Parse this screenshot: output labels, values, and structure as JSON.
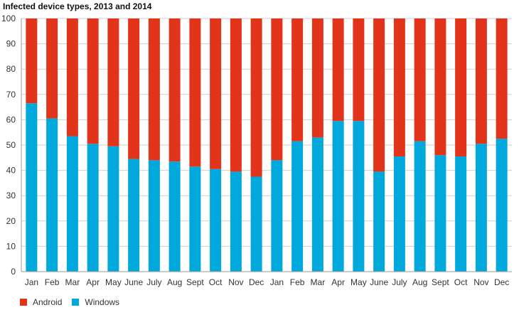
{
  "chart_data": {
    "type": "bar",
    "stacked": true,
    "title": "Infected device types, 2013 and 2014",
    "xlabel": "",
    "ylabel": "",
    "ylim": [
      0,
      100
    ],
    "yticks": [
      0,
      10,
      20,
      30,
      40,
      50,
      60,
      70,
      80,
      90,
      100
    ],
    "grid": true,
    "legend_position": "bottom-left",
    "categories": [
      "Jan",
      "Feb",
      "Mar",
      "Apr",
      "May",
      "June",
      "July",
      "Aug",
      "Sept",
      "Oct",
      "Nov",
      "Dec",
      "Jan",
      "Feb",
      "Mar",
      "Apr",
      "May",
      "June",
      "July",
      "Aug",
      "Sept",
      "Oct",
      "Nov",
      "Dec"
    ],
    "series": [
      {
        "name": "Windows",
        "color": "#00a8dc",
        "values": [
          66.5,
          60.5,
          53.5,
          50.5,
          49.5,
          44.5,
          44,
          43.5,
          41.5,
          40.5,
          39.5,
          37.5,
          44,
          51.5,
          53,
          59.5,
          59.5,
          39.5,
          45.5,
          51.5,
          46,
          45.5,
          50.5,
          52.5
        ]
      },
      {
        "name": "Android",
        "color": "#e2341b",
        "values": [
          33.5,
          39.5,
          46.5,
          49.5,
          50.5,
          55.5,
          56,
          56.5,
          58.5,
          59.5,
          60.5,
          62.5,
          56,
          48.5,
          47,
          40.5,
          40.5,
          60.5,
          54.5,
          48.5,
          54,
          54.5,
          49.5,
          47.5
        ]
      }
    ],
    "legend": [
      {
        "label": "Android",
        "color": "#e2341b"
      },
      {
        "label": "Windows",
        "color": "#00a8dc"
      }
    ]
  }
}
